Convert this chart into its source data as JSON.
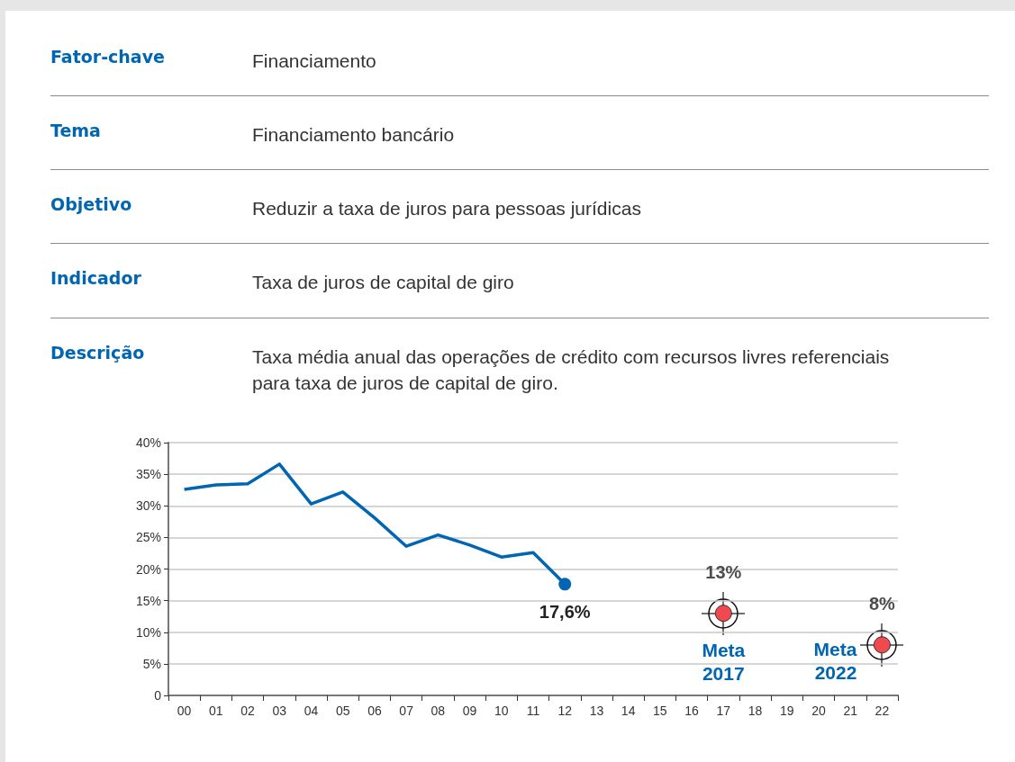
{
  "chart_data": [
    {
      "type": "other",
      "categories": [
        "Fator-chave",
        "Tema",
        "Objetivo",
        "Indicador",
        "Descrição"
      ],
      "annotations": [
        "Financiamento",
        "Financiamento bancário",
        "Reduzir a taxa de juros para pessoas jurídicas",
        "Taxa de juros de capital de giro",
        "Taxa média anual das operações de crédito com recursos livres referenciais para taxa de juros de capital de giro."
      ]
    },
    {
      "type": "line",
      "categories": [
        "00",
        "01",
        "02",
        "03",
        "04",
        "05",
        "06",
        "07",
        "08",
        "09",
        "10",
        "11",
        "12",
        "13",
        "14",
        "15",
        "16",
        "17",
        "18",
        "19",
        "20",
        "21",
        "22"
      ],
      "series": [
        {
          "type": "line",
          "color": "#0066b3",
          "marker": "none",
          "values": [
            32.6,
            33.3,
            33.5,
            36.6,
            30.3,
            32.2,
            28.1,
            23.6,
            25.4,
            23.8,
            21.9,
            22.6,
            17.6,
            null,
            null,
            null,
            null,
            null,
            null,
            null,
            null,
            null,
            null
          ],
          "value_labels": [
            null,
            null,
            null,
            null,
            null,
            null,
            null,
            null,
            null,
            null,
            null,
            null,
            "17,6%",
            null,
            null,
            null,
            null,
            null,
            null,
            null,
            null,
            null,
            null
          ]
        },
        {
          "type": "scatter",
          "color": "#ed1c24",
          "marker": "circle",
          "values": [
            null,
            null,
            null,
            null,
            null,
            null,
            null,
            null,
            null,
            null,
            null,
            null,
            null,
            null,
            null,
            null,
            null,
            13,
            null,
            null,
            null,
            null,
            8
          ],
          "value_labels": [
            null,
            null,
            null,
            null,
            null,
            null,
            null,
            null,
            null,
            null,
            null,
            null,
            null,
            null,
            null,
            null,
            null,
            "13%",
            null,
            null,
            null,
            null,
            "8%"
          ]
        }
      ],
      "ylim": [
        0,
        40
      ],
      "yticks": [
        0,
        {
          "value": 5,
          "label": "5%"
        },
        {
          "value": 10,
          "label": "10%"
        },
        {
          "value": 15,
          "label": "15%"
        },
        {
          "value": 20,
          "label": "20%"
        },
        {
          "value": 25,
          "label": "25%"
        },
        {
          "value": 30,
          "label": "30%"
        },
        {
          "value": 35,
          "label": "35%"
        },
        {
          "value": 40,
          "label": "40%"
        }
      ],
      "grid": "y",
      "annotations": [
        "Meta 2017",
        "Meta 2022"
      ]
    }
  ]
}
